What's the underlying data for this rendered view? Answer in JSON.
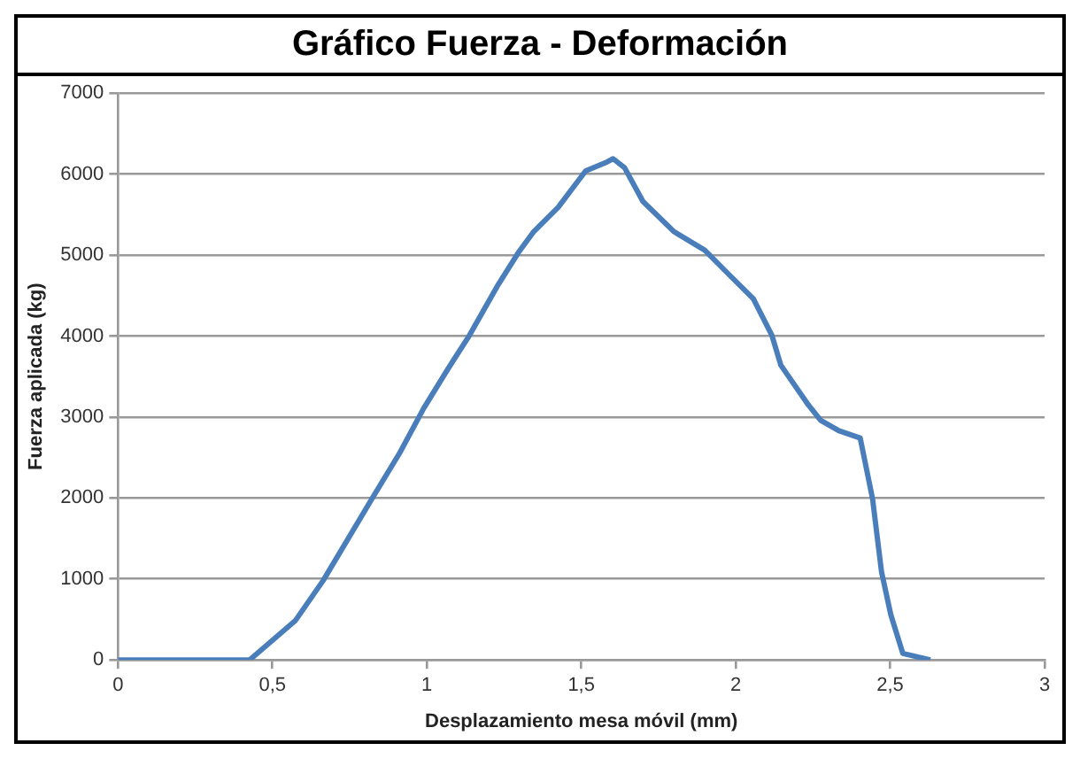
{
  "chart_data": {
    "type": "line",
    "title": "Gráfico Fuerza - Deformación",
    "xlabel": "Desplazamiento mesa móvil (mm)",
    "ylabel": "Fuerza aplicada (kg)",
    "xlim": [
      0,
      3
    ],
    "xticks": [
      0,
      {
        "value": 0.5,
        "label": "0,5"
      },
      1,
      {
        "value": 1.5,
        "label": "1,5"
      },
      2,
      {
        "value": 2.5,
        "label": "2,5"
      },
      3
    ],
    "ylim": [
      0,
      7000
    ],
    "yticks": [
      0,
      1000,
      2000,
      3000,
      4000,
      5000,
      6000,
      7000
    ],
    "grid": "y",
    "legend": false,
    "marker": "none",
    "line_style": "solid",
    "series": [
      {
        "color": "#4a7ebb",
        "x": [
          0,
          0.2,
          0.426,
          0.575,
          0.664,
          0.822,
          0.911,
          0.99,
          1.069,
          1.138,
          1.227,
          1.296,
          1.346,
          1.425,
          1.514,
          1.583,
          1.603,
          1.64,
          1.7,
          1.8,
          1.9,
          1.978,
          2.057,
          2.117,
          2.146,
          2.235,
          2.275,
          2.334,
          2.403,
          2.443,
          2.472,
          2.502,
          2.541,
          2.63
        ],
        "values": [
          0,
          0,
          0,
          490,
          980,
          1990,
          2550,
          3110,
          3600,
          4010,
          4610,
          5030,
          5290,
          5590,
          6040,
          6150,
          6190,
          6080,
          5660,
          5290,
          5060,
          4760,
          4460,
          4010,
          3640,
          3150,
          2960,
          2830,
          2740,
          1990,
          1090,
          560,
          80,
          0
        ]
      }
    ]
  }
}
